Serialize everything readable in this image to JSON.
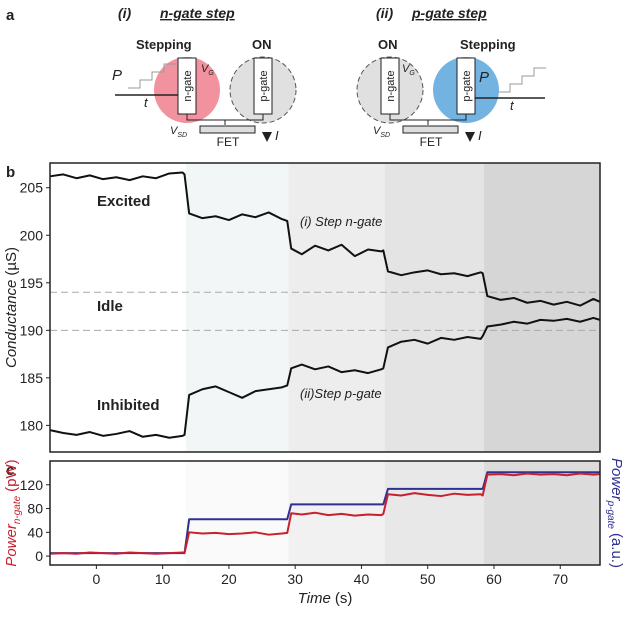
{
  "diagram": {
    "panel_label": "a",
    "left": {
      "num": "(i)",
      "title": "n-gate step",
      "stepping": "Stepping",
      "on": "ON",
      "gate1": "n-gate",
      "gate2": "p-gate",
      "vg": "V",
      "vg_sub": "G",
      "p": "P",
      "t": "t",
      "vsd": "V",
      "vsd_sub": "SD",
      "fet": "FET",
      "i": "I"
    },
    "right": {
      "num": "(ii)",
      "title": "p-gate step",
      "stepping": "Stepping",
      "on": "ON",
      "gate1": "n-gate",
      "gate2": "p-gate",
      "vg": "V",
      "vg_sub": "G",
      "p": "P",
      "t": "t",
      "vsd": "V",
      "vsd_sub": "SD",
      "fet": "FET",
      "i": "I"
    }
  },
  "chart_data": [
    {
      "type": "line",
      "panel_label": "b",
      "ylabel": {
        "text": "Conductance",
        "unit": "(µS)"
      },
      "xlim": [
        -7,
        76
      ],
      "ylim": [
        177.2,
        207.6
      ],
      "yticks": [
        180,
        185,
        190,
        195,
        200,
        205
      ],
      "annotations": [
        "Excited",
        "Idle",
        "Inhibited",
        "(i) Step n-gate",
        "(ii)Step p-gate"
      ],
      "reference_lines": [
        194,
        190
      ],
      "shaded_regions": [
        {
          "x": [
            13.5,
            29
          ],
          "color": "#f3f6f6"
        },
        {
          "x": [
            29,
            43.5
          ],
          "color": "#ededed"
        },
        {
          "x": [
            43.5,
            58.5
          ],
          "color": "#e4e4e4"
        },
        {
          "x": [
            58.5,
            76
          ],
          "color": "#d6d6d6"
        }
      ],
      "x": [
        -7,
        -5,
        -3,
        -1,
        1,
        3,
        5,
        7,
        9,
        11,
        13,
        13.3,
        14,
        16,
        18,
        20,
        22,
        24,
        26,
        28,
        28.8,
        29.4,
        31,
        33,
        35,
        37,
        39,
        41,
        43,
        43.3,
        44,
        46,
        48,
        50,
        52,
        54,
        56,
        58,
        58.3,
        59,
        61,
        63,
        65,
        67,
        69,
        71,
        73,
        75,
        76
      ],
      "series": [
        {
          "color": "#111111",
          "values": [
            206.2,
            206.4,
            206.0,
            206.3,
            205.9,
            206.1,
            205.8,
            206.2,
            206.0,
            206.5,
            206.6,
            206.4,
            202.3,
            201.8,
            202.0,
            201.6,
            202.2,
            201.9,
            202.4,
            201.7,
            201.5,
            198.6,
            198.0,
            198.9,
            198.4,
            199.0,
            197.8,
            198.5,
            198.3,
            198.4,
            196.2,
            195.8,
            196.1,
            196.3,
            195.9,
            196.0,
            195.7,
            196.1,
            196.0,
            193.6,
            193.2,
            193.4,
            192.9,
            193.1,
            192.7,
            193.0,
            192.6,
            193.3,
            193.0
          ]
        },
        {
          "color": "#111111",
          "values": [
            179.5,
            179.2,
            179.0,
            179.3,
            178.9,
            179.1,
            179.4,
            178.8,
            179.0,
            178.7,
            178.9,
            179.0,
            183.2,
            183.8,
            184.1,
            183.5,
            182.9,
            183.6,
            183.8,
            184.0,
            184.2,
            186.0,
            186.4,
            185.9,
            186.2,
            185.6,
            185.8,
            185.5,
            185.9,
            186.0,
            188.2,
            188.8,
            189.0,
            188.6,
            189.2,
            189.0,
            189.3,
            189.1,
            189.4,
            190.4,
            190.6,
            190.9,
            190.7,
            191.1,
            191.0,
            191.2,
            190.9,
            191.3,
            191.1
          ]
        }
      ]
    },
    {
      "type": "line",
      "panel_label": "c",
      "ylabel": {
        "text": "Power",
        "sub": "n-gate",
        "unit": "(pW)"
      },
      "y2label": {
        "text": "Power",
        "sub": "p-gate",
        "unit": "(a.u.)"
      },
      "xlabel": {
        "text": "Time",
        "unit": "(s)"
      },
      "xlim": [
        -7,
        76
      ],
      "ylim": [
        -15,
        160
      ],
      "yticks": [
        0,
        40,
        80,
        120
      ],
      "xticks": [
        0,
        10,
        20,
        30,
        40,
        50,
        60,
        70
      ],
      "y2lim": [
        -15,
        160
      ],
      "shaded_regions": [
        {
          "x": [
            13.5,
            29
          ],
          "color": "#fafafa"
        },
        {
          "x": [
            29,
            43.5
          ],
          "color": "#f1f1f1"
        },
        {
          "x": [
            43.5,
            58.5
          ],
          "color": "#e8e8e8"
        },
        {
          "x": [
            58.5,
            76
          ],
          "color": "#dcdcdc"
        }
      ],
      "x": [
        -7,
        -5,
        -3,
        -1,
        1,
        3,
        5,
        7,
        9,
        11,
        13,
        13.3,
        14,
        16,
        18,
        20,
        22,
        24,
        26,
        28,
        28.8,
        29.4,
        31,
        33,
        35,
        37,
        39,
        41,
        43,
        43.3,
        44,
        46,
        48,
        50,
        52,
        54,
        56,
        58,
        58.3,
        59,
        61,
        63,
        65,
        67,
        69,
        71,
        73,
        75,
        76
      ],
      "series": [
        {
          "color": "#2e3192",
          "axis": "y2",
          "values": [
            5,
            5,
            5,
            5,
            5,
            5,
            5,
            5,
            5,
            5,
            5,
            5,
            62,
            62,
            62,
            62,
            62,
            62,
            62,
            62,
            62,
            87,
            87,
            87,
            87,
            87,
            87,
            87,
            87,
            87,
            113,
            113,
            113,
            113,
            113,
            113,
            113,
            113,
            113,
            141,
            141,
            141,
            141,
            141,
            141,
            141,
            141,
            141,
            141
          ]
        },
        {
          "color": "#c8202f",
          "values": [
            4,
            5,
            4,
            6,
            5,
            4,
            6,
            5,
            4,
            5,
            6,
            5,
            40,
            38,
            39,
            37,
            38,
            40,
            36,
            38,
            39,
            72,
            70,
            73,
            69,
            71,
            68,
            70,
            69,
            71,
            104,
            102,
            106,
            103,
            101,
            105,
            103,
            104,
            102,
            137,
            138,
            136,
            139,
            137,
            138,
            136,
            139,
            137,
            138
          ]
        }
      ]
    }
  ]
}
